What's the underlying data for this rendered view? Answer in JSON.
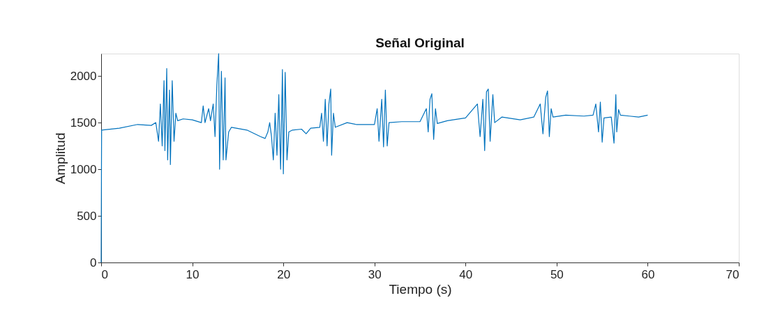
{
  "chart_data": {
    "type": "line",
    "title": "Señal Original",
    "xlabel": "Tiempo (s)",
    "ylabel": "Amplitud",
    "xlim": [
      0,
      70
    ],
    "xticks": [
      0,
      10,
      20,
      30,
      40,
      50,
      60,
      70
    ],
    "ylim": [
      0,
      2240
    ],
    "yticks": [
      0,
      500,
      1000,
      1500,
      2000
    ],
    "grid": false,
    "marker": "none",
    "line_style": "solid",
    "series": [
      {
        "color": "#0072bd",
        "x": [
          0,
          0.05,
          2,
          4,
          5.5,
          6,
          6.3,
          6.5,
          6.7,
          6.9,
          7.0,
          7.2,
          7.3,
          7.5,
          7.6,
          7.8,
          8.0,
          8.2,
          8.4,
          9,
          10,
          11,
          11.2,
          11.4,
          11.8,
          12,
          12.3,
          12.5,
          12.7,
          12.9,
          13.0,
          13.2,
          13.4,
          13.6,
          13.7,
          14,
          14.3,
          16,
          17.5,
          18,
          18.3,
          18.5,
          18.7,
          18.9,
          19.1,
          19.3,
          19.5,
          19.7,
          19.9,
          20.0,
          20.2,
          20.4,
          20.6,
          21,
          22,
          22.5,
          23,
          24,
          24.2,
          24.4,
          24.6,
          24.8,
          25.0,
          25.2,
          25.3,
          25.5,
          25.7,
          27,
          28,
          30,
          30.3,
          30.5,
          30.8,
          31.0,
          31.2,
          31.4,
          31.6,
          33,
          35,
          35.7,
          35.9,
          36.1,
          36.3,
          36.5,
          36.7,
          36.9,
          38,
          40,
          41.3,
          41.6,
          41.9,
          42.1,
          42.3,
          42.5,
          42.7,
          43.0,
          43.2,
          44,
          46,
          47.5,
          48.2,
          48.5,
          48.8,
          49.0,
          49.2,
          49.4,
          49.6,
          51,
          53,
          54,
          54.3,
          54.6,
          54.8,
          55.0,
          55.2,
          56,
          56.3,
          56.5,
          56.6,
          56.8,
          57,
          58,
          59,
          60
        ],
        "values": [
          0,
          1420,
          1440,
          1480,
          1470,
          1500,
          1300,
          1700,
          1250,
          1950,
          1200,
          2080,
          1100,
          1850,
          1050,
          1950,
          1300,
          1600,
          1520,
          1540,
          1530,
          1500,
          1680,
          1500,
          1650,
          1520,
          1700,
          1350,
          1900,
          2240,
          1000,
          2050,
          1100,
          1980,
          1100,
          1400,
          1450,
          1420,
          1350,
          1330,
          1400,
          1500,
          1350,
          1100,
          1600,
          1150,
          1800,
          1000,
          2070,
          950,
          2040,
          1100,
          1400,
          1420,
          1430,
          1380,
          1440,
          1450,
          1600,
          1300,
          1750,
          1250,
          1700,
          1860,
          1150,
          1600,
          1450,
          1500,
          1480,
          1480,
          1650,
          1300,
          1750,
          1240,
          1850,
          1250,
          1500,
          1510,
          1510,
          1650,
          1400,
          1750,
          1810,
          1320,
          1650,
          1490,
          1520,
          1550,
          1700,
          1350,
          1750,
          1200,
          1830,
          1860,
          1300,
          1800,
          1500,
          1560,
          1530,
          1560,
          1700,
          1380,
          1770,
          1840,
          1350,
          1650,
          1560,
          1580,
          1570,
          1580,
          1700,
          1400,
          1720,
          1290,
          1550,
          1560,
          1280,
          1800,
          1400,
          1640,
          1580,
          1570,
          1560,
          1580
        ]
      }
    ]
  }
}
